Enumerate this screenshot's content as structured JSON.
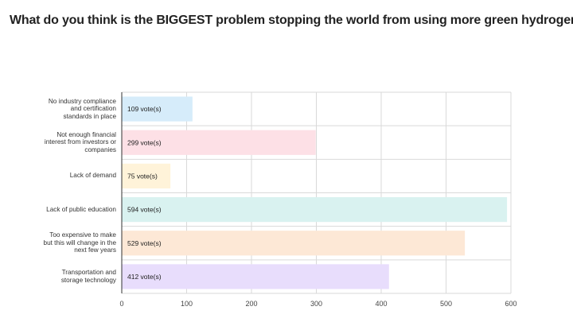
{
  "title": "What do you think is the BIGGEST problem stopping the world from using more green hydrogen?",
  "chart_data": {
    "type": "bar",
    "orientation": "horizontal",
    "categories": [
      "No industry compliance and certification standards in place",
      "Not enough financial interest from investors or companies",
      "Lack of demand",
      "Lack of public education",
      "Too expensive to make but this will change in the next few years",
      "Transportation and storage technology"
    ],
    "values": [
      109,
      299,
      75,
      594,
      529,
      412
    ],
    "data_labels": [
      "109 vote(s)",
      "299 vote(s)",
      "75 vote(s)",
      "594 vote(s)",
      "529 vote(s)",
      "412 vote(s)"
    ],
    "colors": [
      "#d6ecfa",
      "#fde0e6",
      "#fff3d9",
      "#d9f2f0",
      "#fde8d6",
      "#e8ddfc"
    ],
    "xlim": [
      0,
      600
    ],
    "xticks": [
      "0",
      "100",
      "200",
      "300",
      "400",
      "500",
      "600"
    ],
    "grid": true,
    "title": "What do you think is the BIGGEST problem stopping the world from using more green hydrogen?"
  }
}
